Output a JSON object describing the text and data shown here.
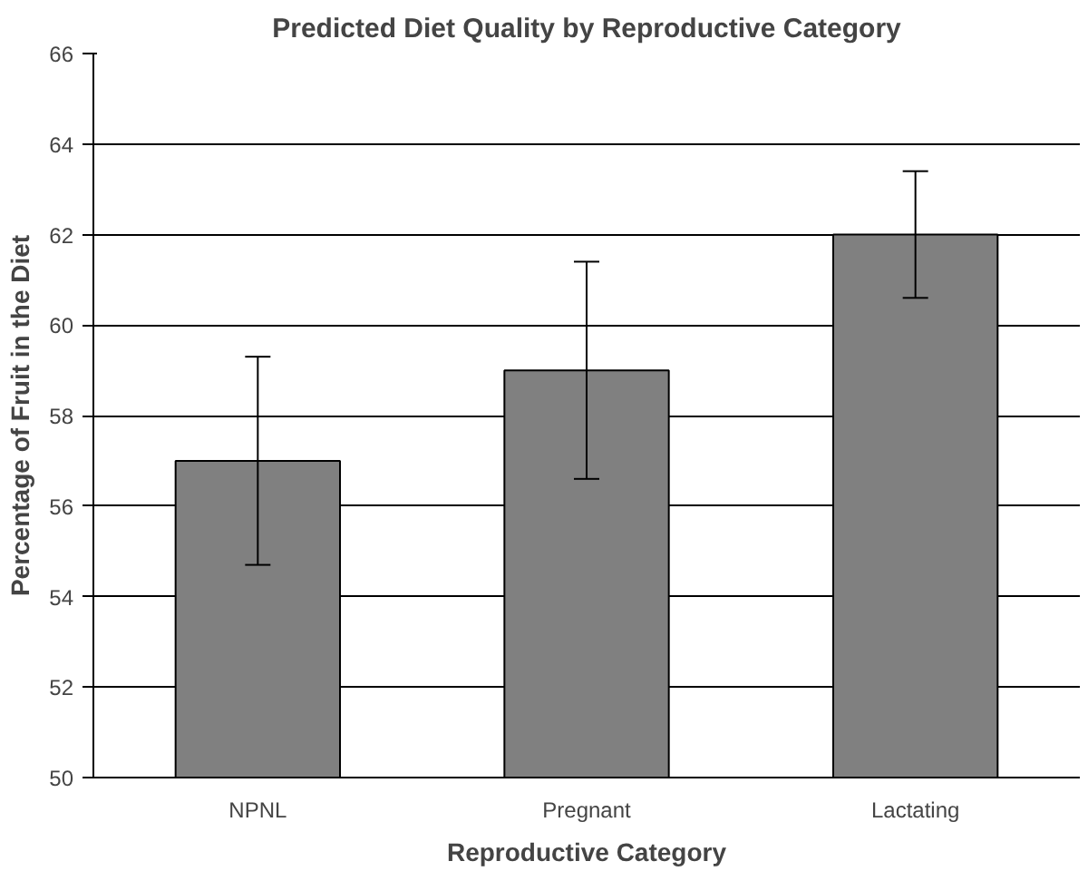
{
  "chart_data": {
    "type": "bar",
    "title": "Predicted Diet Quality by Reproductive Category",
    "xlabel": "Reproductive Category",
    "ylabel": "Percentage of Fruit in the Diet",
    "categories": [
      "NPNL",
      "Pregnant",
      "Lactating"
    ],
    "values": [
      57.0,
      59.0,
      62.0
    ],
    "errors": [
      2.3,
      2.4,
      1.4
    ],
    "color": "#808080",
    "ylim": [
      50,
      66
    ],
    "yticks": [
      50,
      52,
      54,
      56,
      58,
      60,
      62,
      64,
      66
    ],
    "grid": "y"
  }
}
